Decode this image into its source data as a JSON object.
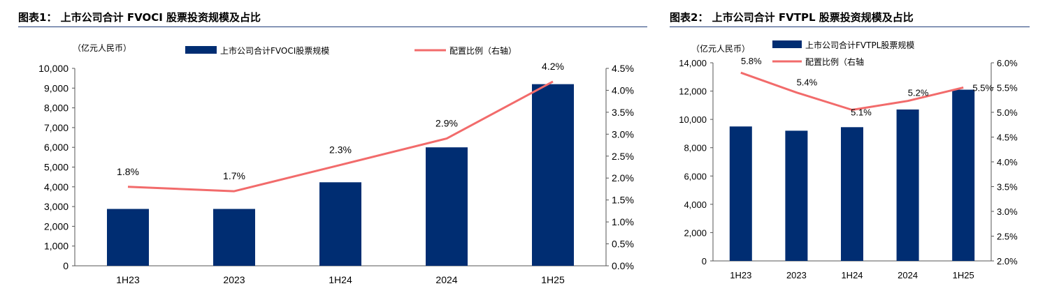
{
  "chart_data": [
    {
      "type": "bar",
      "title": "图表1： 上市公司合计 FVOCI 股票投资规模及占比",
      "unit_label": "（亿元人民币）",
      "categories": [
        "1H23",
        "2023",
        "1H24",
        "2024",
        "1H25"
      ],
      "series": [
        {
          "name": "上市公司合计FVOCI股票规模",
          "type": "bar",
          "axis": "left",
          "color": "#002d72",
          "values": [
            2880,
            2880,
            4230,
            6000,
            9200
          ]
        },
        {
          "name": "配置比例（右轴）",
          "type": "line",
          "axis": "right",
          "color": "#f26b6b",
          "values": [
            1.8,
            1.7,
            2.3,
            2.9,
            4.2
          ],
          "data_labels": [
            "1.8%",
            "1.7%",
            "2.3%",
            "2.9%",
            "4.2%"
          ]
        }
      ],
      "y_left": {
        "min": 0,
        "max": 10000,
        "ticks": [
          "0",
          "1,000",
          "2,000",
          "3,000",
          "4,000",
          "5,000",
          "6,000",
          "7,000",
          "8,000",
          "9,000",
          "10,000"
        ]
      },
      "y_right": {
        "min": 0,
        "max": 4.5,
        "ticks": [
          "0.0%",
          "0.5%",
          "1.0%",
          "1.5%",
          "2.0%",
          "2.5%",
          "3.0%",
          "3.5%",
          "4.0%",
          "4.5%"
        ]
      },
      "grid": false,
      "legend": "top"
    },
    {
      "type": "bar",
      "title": "图表2： 上市公司合计 FVTPL 股票投资规模及占比",
      "unit_label": "（亿元人民币）",
      "categories": [
        "1H23",
        "2023",
        "1H24",
        "2024",
        "1H25"
      ],
      "series": [
        {
          "name": "上市公司合计FVTPL股票规模",
          "type": "bar",
          "axis": "left",
          "color": "#002d72",
          "values": [
            9500,
            9200,
            9450,
            10700,
            12100
          ]
        },
        {
          "name": "配置比例（右轴",
          "type": "line",
          "axis": "right",
          "color": "#f26b6b",
          "values": [
            5.8,
            5.4,
            5.05,
            5.23,
            5.5
          ],
          "data_labels": [
            "5.8%",
            "5.4%",
            "5.1%",
            "5.2%",
            "5.5%"
          ]
        }
      ],
      "y_left": {
        "min": 0,
        "max": 14000,
        "ticks": [
          "0",
          "2,000",
          "4,000",
          "6,000",
          "8,000",
          "10,000",
          "12,000",
          "14,000"
        ]
      },
      "y_right": {
        "min": 2.0,
        "max": 6.0,
        "ticks": [
          "2.0%",
          "2.5%",
          "3.0%",
          "3.5%",
          "4.0%",
          "4.5%",
          "5.0%",
          "5.5%",
          "6.0%"
        ]
      },
      "grid": false,
      "legend": "top"
    }
  ]
}
